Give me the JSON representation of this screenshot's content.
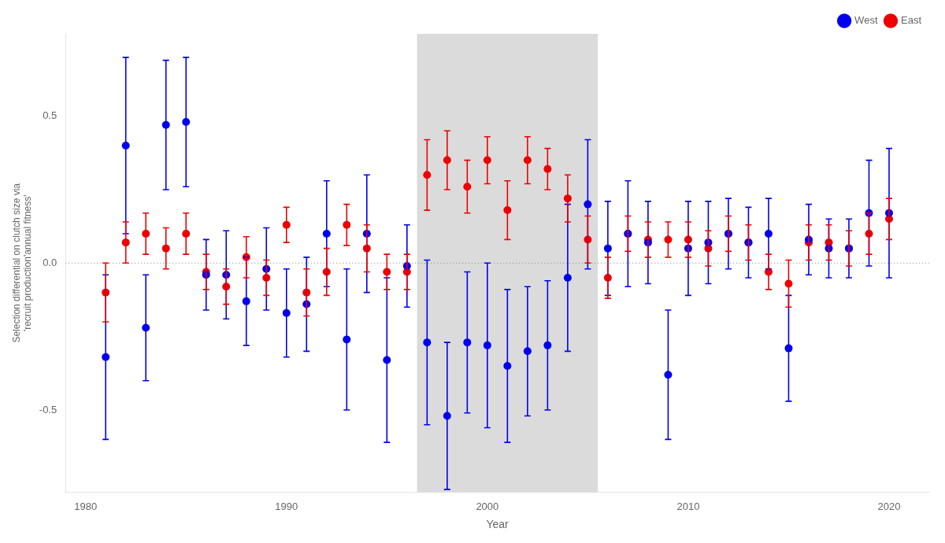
{
  "chart_data": {
    "type": "scatter",
    "xlabel": "Year",
    "ylabel": "Selection differential on clutch size via\n'recruit production'annual fitness'",
    "x": [
      1981,
      1982,
      1983,
      1984,
      1985,
      1986,
      1987,
      1988,
      1989,
      1990,
      1991,
      1992,
      1993,
      1994,
      1995,
      1996,
      1997,
      1998,
      1999,
      2000,
      2001,
      2002,
      2003,
      2004,
      2005,
      2006,
      2007,
      2008,
      2009,
      2010,
      2011,
      2012,
      2013,
      2014,
      2015,
      2016,
      2017,
      2018,
      2019,
      2020
    ],
    "series": [
      {
        "name": "West",
        "color": "#0000EE",
        "values": [
          -0.32,
          0.4,
          -0.22,
          0.47,
          0.48,
          -0.04,
          -0.04,
          -0.13,
          -0.02,
          -0.17,
          -0.14,
          0.1,
          -0.26,
          0.1,
          -0.33,
          -0.01,
          -0.27,
          -0.52,
          -0.27,
          -0.28,
          -0.35,
          -0.3,
          -0.28,
          -0.05,
          0.2,
          0.05,
          0.1,
          0.07,
          -0.38,
          0.05,
          0.07,
          0.1,
          0.07,
          0.1,
          -0.29,
          0.08,
          0.05,
          0.05,
          0.17,
          0.17
        ],
        "err_low": [
          0.28,
          0.3,
          0.18,
          0.22,
          0.22,
          0.12,
          0.15,
          0.15,
          0.14,
          0.15,
          0.16,
          0.18,
          0.24,
          0.2,
          0.28,
          0.14,
          0.28,
          0.25,
          0.24,
          0.28,
          0.26,
          0.22,
          0.22,
          0.25,
          0.22,
          0.16,
          0.18,
          0.14,
          0.22,
          0.16,
          0.14,
          0.12,
          0.12,
          0.12,
          0.18,
          0.12,
          0.1,
          0.1,
          0.18,
          0.22
        ],
        "err_high": [
          0.28,
          0.3,
          0.18,
          0.22,
          0.22,
          0.12,
          0.15,
          0.15,
          0.14,
          0.15,
          0.16,
          0.18,
          0.24,
          0.2,
          0.28,
          0.14,
          0.28,
          0.25,
          0.24,
          0.28,
          0.26,
          0.22,
          0.22,
          0.25,
          0.22,
          0.16,
          0.18,
          0.14,
          0.22,
          0.16,
          0.14,
          0.12,
          0.12,
          0.12,
          0.18,
          0.12,
          0.1,
          0.1,
          0.18,
          0.22
        ]
      },
      {
        "name": "East",
        "color": "#EE0000",
        "values": [
          -0.1,
          0.07,
          0.1,
          0.05,
          0.1,
          -0.03,
          -0.08,
          0.02,
          -0.05,
          0.13,
          -0.1,
          -0.03,
          0.13,
          0.05,
          -0.03,
          -0.03,
          0.3,
          0.35,
          0.26,
          0.35,
          0.18,
          0.35,
          0.32,
          0.22,
          0.08,
          -0.05,
          0.1,
          0.08,
          0.08,
          0.08,
          0.05,
          0.1,
          0.07,
          -0.03,
          -0.07,
          0.07,
          0.07,
          0.05,
          0.1,
          0.15
        ],
        "err_low": [
          0.1,
          0.07,
          0.07,
          0.07,
          0.07,
          0.06,
          0.06,
          0.07,
          0.06,
          0.06,
          0.08,
          0.08,
          0.07,
          0.08,
          0.06,
          0.06,
          0.12,
          0.1,
          0.09,
          0.08,
          0.1,
          0.08,
          0.07,
          0.08,
          0.08,
          0.07,
          0.06,
          0.06,
          0.06,
          0.06,
          0.06,
          0.06,
          0.06,
          0.06,
          0.08,
          0.06,
          0.06,
          0.06,
          0.07,
          0.07
        ],
        "err_high": [
          0.1,
          0.07,
          0.07,
          0.07,
          0.07,
          0.06,
          0.06,
          0.07,
          0.06,
          0.06,
          0.08,
          0.08,
          0.07,
          0.08,
          0.06,
          0.06,
          0.12,
          0.1,
          0.09,
          0.08,
          0.1,
          0.08,
          0.07,
          0.08,
          0.08,
          0.07,
          0.06,
          0.06,
          0.06,
          0.06,
          0.06,
          0.06,
          0.06,
          0.06,
          0.08,
          0.06,
          0.06,
          0.06,
          0.07,
          0.07
        ]
      }
    ],
    "xlim": [
      1979.0,
      2022.0
    ],
    "xticks": [
      1980,
      1990,
      2000,
      2010,
      2020
    ],
    "ylim": [
      -0.78,
      0.78
    ],
    "yticks": [
      -0.5,
      {
        "value": 0.0,
        "label": "0.0"
      },
      0.5
    ],
    "grid": false,
    "legend": "upper right",
    "shaded_region": {
      "x": [
        1996.5,
        2005.5
      ],
      "color": "#BEBEBE"
    },
    "reference_line": {
      "y": 0.0
    }
  }
}
